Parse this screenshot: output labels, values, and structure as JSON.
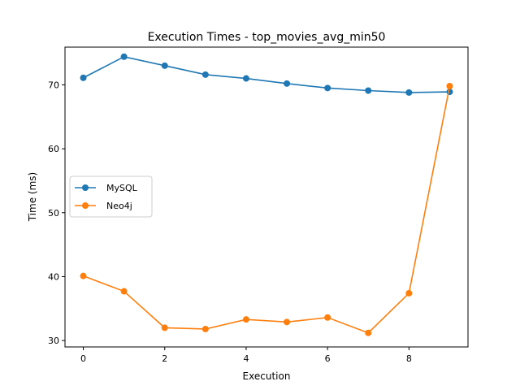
{
  "chart_data": {
    "type": "line",
    "title": "Execution Times - top_movies_avg_min50",
    "xlabel": "Execution",
    "ylabel": "Time (ms)",
    "xlim": [
      -0.45,
      9.45
    ],
    "ylim": [
      29.0,
      75.9
    ],
    "xticks": [
      0,
      2,
      4,
      6,
      8
    ],
    "yticks": [
      30,
      40,
      50,
      60,
      70
    ],
    "grid": false,
    "legend_position": "center-left",
    "x": [
      0,
      1,
      2,
      3,
      4,
      5,
      6,
      7,
      8,
      9
    ],
    "series": [
      {
        "name": "MySQL",
        "color": "#1f77b4",
        "marker": "circle",
        "values": [
          71.1,
          74.4,
          73.0,
          71.6,
          71.0,
          70.2,
          69.5,
          69.1,
          68.8,
          68.9
        ]
      },
      {
        "name": "Neo4j",
        "color": "#ff7f0e",
        "marker": "circle",
        "values": [
          40.1,
          37.7,
          32.0,
          31.8,
          33.3,
          32.9,
          33.6,
          31.2,
          37.4,
          69.8
        ]
      }
    ]
  }
}
